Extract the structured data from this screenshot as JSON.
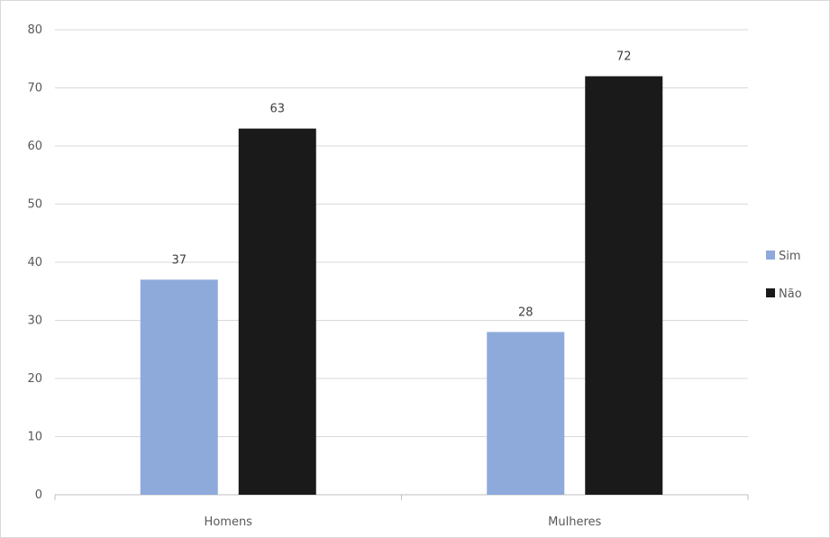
{
  "chart_data": {
    "type": "bar",
    "categories": [
      "Homens",
      "Mulheres"
    ],
    "series": [
      {
        "name": "Sim",
        "values": [
          37,
          28
        ],
        "color": "#8eaadb"
      },
      {
        "name": "Não",
        "values": [
          63,
          72
        ],
        "color": "#1a1a1a"
      }
    ],
    "title": "",
    "xlabel": "",
    "ylabel": "",
    "ylim": [
      0,
      80
    ],
    "yticks": [
      0,
      10,
      20,
      30,
      40,
      50,
      60,
      70,
      80
    ],
    "grid": true,
    "legend_position": "right",
    "data_labels": true
  }
}
